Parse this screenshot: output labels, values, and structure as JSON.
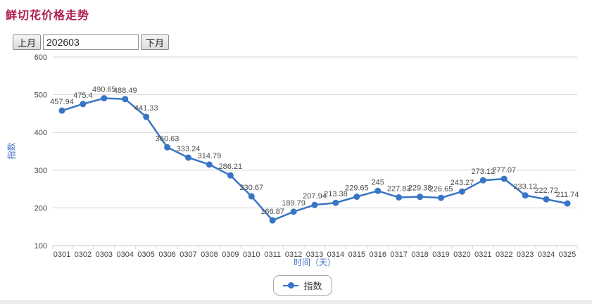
{
  "page": {
    "title": "鲜切花价格走势"
  },
  "controls": {
    "prev_label": "上月",
    "month_value": "202603",
    "next_label": "下月"
  },
  "chart_data": {
    "type": "line",
    "categories": [
      "0301",
      "0302",
      "0303",
      "0304",
      "0305",
      "0306",
      "0307",
      "0308",
      "0309",
      "0310",
      "0311",
      "0312",
      "0313",
      "0314",
      "0315",
      "0316",
      "0317",
      "0318",
      "0319",
      "0320",
      "0321",
      "0322",
      "0323",
      "0324",
      "0325"
    ],
    "series": [
      {
        "name": "指数",
        "values": [
          457.94,
          475.4,
          490.65,
          488.49,
          441.33,
          360.63,
          333.24,
          314.79,
          286.21,
          230.67,
          166.87,
          189.79,
          207.94,
          213.38,
          229.65,
          245,
          227.83,
          229.38,
          226.65,
          243.27,
          273.12,
          277.07,
          233.12,
          222.72,
          211.74
        ]
      }
    ],
    "xlabel": "时间（天）",
    "ylabel": "指数",
    "ylim": [
      100,
      600
    ],
    "yticks": [
      100,
      200,
      300,
      400,
      500,
      600
    ],
    "grid": true,
    "legend_position": "bottom"
  },
  "legend": {
    "items": [
      {
        "label": "指数",
        "color": "#3875c6"
      }
    ]
  },
  "colors": {
    "title": "#b01e50",
    "line": "#3875c6",
    "axis_title": "#4472c4",
    "grid": "#d6d6d6",
    "axis_line": "#c4c4c4",
    "tick_text": "#444444",
    "value_label": "#4d4d4d"
  }
}
